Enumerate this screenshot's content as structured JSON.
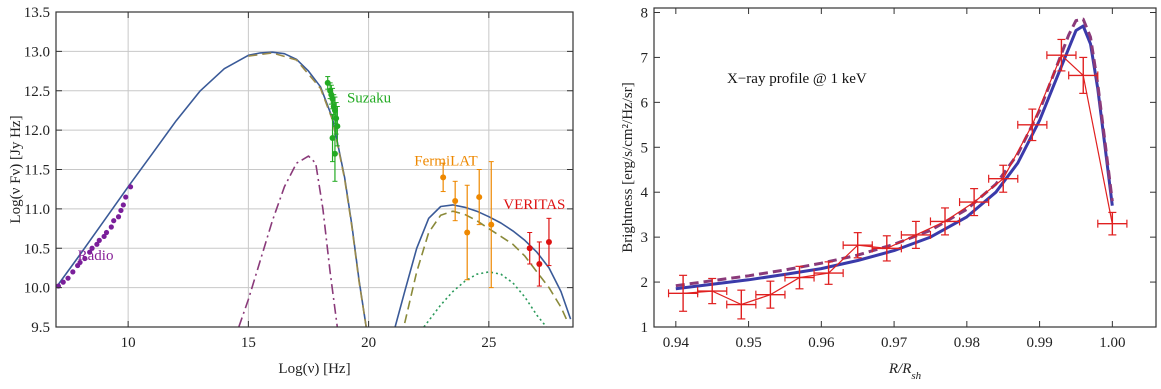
{
  "chart_data": [
    {
      "type": "scatter",
      "xlabel": "Log(ν)  [Hz]",
      "ylabel": "Log(ν Fν)  [Jy Hz]",
      "xlim": [
        7,
        28.5
      ],
      "ylim": [
        9.5,
        13.5
      ],
      "xticks": [
        10,
        15,
        20,
        25
      ],
      "yticks": [
        9.5,
        10.0,
        10.5,
        11.0,
        11.5,
        12.0,
        12.5,
        13.0,
        13.5
      ],
      "grid": true,
      "annotations": [
        {
          "text": "Suzaku",
          "color": "#22aa22",
          "x": 19.1,
          "y": 12.35
        },
        {
          "text": "FermiLAT",
          "color": "#ee8800",
          "x": 21.9,
          "y": 11.55
        },
        {
          "text": "VERITAS",
          "color": "#dd1111",
          "x": 25.6,
          "y": 11.0
        },
        {
          "text": "Radio",
          "color": "#882299",
          "x": 7.9,
          "y": 10.35
        }
      ],
      "curves": [
        {
          "style": "solid",
          "color": "#3a5a98",
          "x": [
            7.0,
            8,
            9,
            10,
            11,
            12,
            13,
            14,
            15,
            15.5,
            16,
            16.5,
            17,
            17.5,
            18,
            18.5,
            19,
            19.3,
            19.6,
            19.9
          ],
          "y": [
            10.0,
            10.42,
            10.85,
            11.28,
            11.7,
            12.12,
            12.5,
            12.78,
            12.95,
            12.98,
            12.99,
            12.97,
            12.9,
            12.75,
            12.55,
            12.15,
            11.4,
            10.8,
            10.1,
            9.5
          ]
        },
        {
          "style": "dashed",
          "color": "#9a8a4a",
          "x": [
            15,
            16,
            17,
            18,
            18.5,
            19,
            19.3,
            19.6,
            19.9
          ],
          "y": [
            12.94,
            12.98,
            12.89,
            12.53,
            12.13,
            11.38,
            10.78,
            10.08,
            9.5
          ]
        },
        {
          "style": "dashdot",
          "color": "#8a3a7a",
          "x": [
            14.6,
            15,
            15.5,
            16,
            16.5,
            17,
            17.5,
            17.8,
            18.1,
            18.4,
            18.7
          ],
          "y": [
            9.5,
            9.85,
            10.35,
            10.85,
            11.28,
            11.58,
            11.67,
            11.58,
            11.0,
            10.2,
            9.5
          ]
        },
        {
          "style": "solid",
          "color": "#3a5a98",
          "x": [
            21.1,
            21.5,
            22,
            22.5,
            23,
            23.5,
            24,
            24.5,
            25,
            25.5,
            26,
            26.5,
            27,
            27.5,
            28,
            28.4
          ],
          "y": [
            9.5,
            9.95,
            10.5,
            10.88,
            11.03,
            11.05,
            11.02,
            10.97,
            10.9,
            10.82,
            10.72,
            10.6,
            10.45,
            10.25,
            9.95,
            9.6
          ]
        },
        {
          "style": "dashed",
          "color": "#8a8a3a",
          "x": [
            21.5,
            22,
            22.5,
            23,
            23.5,
            24,
            24.5,
            25,
            25.5,
            26,
            26.5,
            27,
            27.5,
            28,
            28.3
          ],
          "y": [
            9.55,
            10.2,
            10.7,
            10.92,
            10.97,
            10.93,
            10.85,
            10.75,
            10.65,
            10.55,
            10.4,
            10.2,
            10.0,
            9.75,
            9.55
          ]
        },
        {
          "style": "dotted",
          "color": "#2a9a5a",
          "x": [
            22.3,
            23,
            23.5,
            24,
            24.5,
            25,
            25.5,
            26,
            26.5,
            27,
            27.4
          ],
          "y": [
            9.5,
            9.78,
            9.95,
            10.08,
            10.17,
            10.2,
            10.17,
            10.06,
            9.88,
            9.65,
            9.5
          ]
        }
      ],
      "series": [
        {
          "name": "Radio",
          "color": "#7a1f9a",
          "marker": "dot",
          "x": [
            7.1,
            7.3,
            7.5,
            7.7,
            7.9,
            8.0,
            8.2,
            8.4,
            8.5,
            8.7,
            8.8,
            9.0,
            9.1,
            9.3,
            9.4,
            9.6,
            9.7,
            9.8,
            9.9,
            10.1
          ],
          "y": [
            10.02,
            10.07,
            10.12,
            10.2,
            10.28,
            10.32,
            10.37,
            10.45,
            10.5,
            10.55,
            10.6,
            10.65,
            10.7,
            10.77,
            10.85,
            10.9,
            10.98,
            11.05,
            11.15,
            11.28
          ]
        },
        {
          "name": "Suzaku",
          "color": "#22aa22",
          "marker": "errorbar",
          "x": [
            18.3,
            18.4,
            18.45,
            18.5,
            18.55,
            18.6,
            18.65,
            18.7,
            18.5,
            18.6
          ],
          "y": [
            12.6,
            12.5,
            12.45,
            12.4,
            12.3,
            12.25,
            12.15,
            12.05,
            11.9,
            11.7
          ],
          "err": [
            0.08,
            0.1,
            0.12,
            0.13,
            0.15,
            0.17,
            0.2,
            0.25,
            0.3,
            0.35
          ]
        },
        {
          "name": "FermiLAT",
          "color": "#ee8800",
          "marker": "errorbar",
          "x": [
            23.1,
            23.6,
            24.1,
            24.6,
            25.1
          ],
          "y": [
            11.4,
            11.1,
            10.7,
            11.15,
            10.8
          ],
          "err": [
            0.18,
            0.25,
            0.6,
            0.35,
            0.8
          ]
        },
        {
          "name": "VERITAS",
          "color": "#dd1111",
          "marker": "errorbar",
          "x": [
            26.7,
            27.1,
            27.5
          ],
          "y": [
            10.5,
            10.3,
            10.58
          ],
          "err": [
            0.2,
            0.28,
            0.3
          ]
        }
      ]
    },
    {
      "type": "line",
      "title": "X−ray profile @ 1 keV",
      "xlabel": "R/R",
      "xlabel_sub": "sh",
      "ylabel": "Brightness [erg/s/cm²/Hz/sr]",
      "xlim": [
        0.937,
        1.006
      ],
      "ylim": [
        1,
        8.1
      ],
      "xticks": [
        0.94,
        0.95,
        0.96,
        0.97,
        0.98,
        0.99,
        1.0
      ],
      "yticks": [
        1,
        2,
        3,
        4,
        5,
        6,
        7,
        8
      ],
      "grid": false,
      "curves": [
        {
          "style": "solid-thick",
          "color": "#3a3aaa",
          "x": [
            0.94,
            0.945,
            0.95,
            0.955,
            0.96,
            0.965,
            0.97,
            0.975,
            0.98,
            0.984,
            0.987,
            0.99,
            0.992,
            0.994,
            0.995,
            0.996,
            0.997,
            0.998,
            0.999,
            1.0
          ],
          "y": [
            1.85,
            1.95,
            2.05,
            2.17,
            2.3,
            2.48,
            2.7,
            3.0,
            3.45,
            4.0,
            4.65,
            5.6,
            6.4,
            7.2,
            7.6,
            7.7,
            7.3,
            6.3,
            5.0,
            3.7
          ]
        },
        {
          "style": "dashed-thick",
          "color": "#8a3a7a",
          "x": [
            0.94,
            0.945,
            0.95,
            0.955,
            0.96,
            0.965,
            0.97,
            0.975,
            0.98,
            0.984,
            0.987,
            0.99,
            0.992,
            0.994,
            0.995,
            0.996,
            0.997,
            0.998,
            0.999,
            1.0
          ],
          "y": [
            1.92,
            2.03,
            2.14,
            2.27,
            2.42,
            2.6,
            2.84,
            3.15,
            3.62,
            4.18,
            4.85,
            5.82,
            6.65,
            7.5,
            7.82,
            7.85,
            7.45,
            6.4,
            5.1,
            3.8
          ]
        }
      ],
      "series": [
        {
          "name": "",
          "color": "#e02020",
          "marker": "cross-errorbar",
          "x": [
            0.941,
            0.945,
            0.949,
            0.953,
            0.957,
            0.961,
            0.965,
            0.969,
            0.973,
            0.977,
            0.981,
            0.985,
            0.989,
            0.993,
            0.996,
            1.0
          ],
          "y": [
            1.75,
            1.8,
            1.5,
            1.72,
            2.1,
            2.2,
            2.82,
            2.75,
            3.05,
            3.35,
            3.78,
            4.3,
            5.5,
            7.05,
            6.6,
            3.3
          ],
          "xerr": 0.002,
          "yerr": [
            0.4,
            0.28,
            0.32,
            0.3,
            0.25,
            0.25,
            0.28,
            0.28,
            0.3,
            0.3,
            0.3,
            0.3,
            0.35,
            0.35,
            0.4,
            0.25
          ]
        }
      ]
    }
  ]
}
